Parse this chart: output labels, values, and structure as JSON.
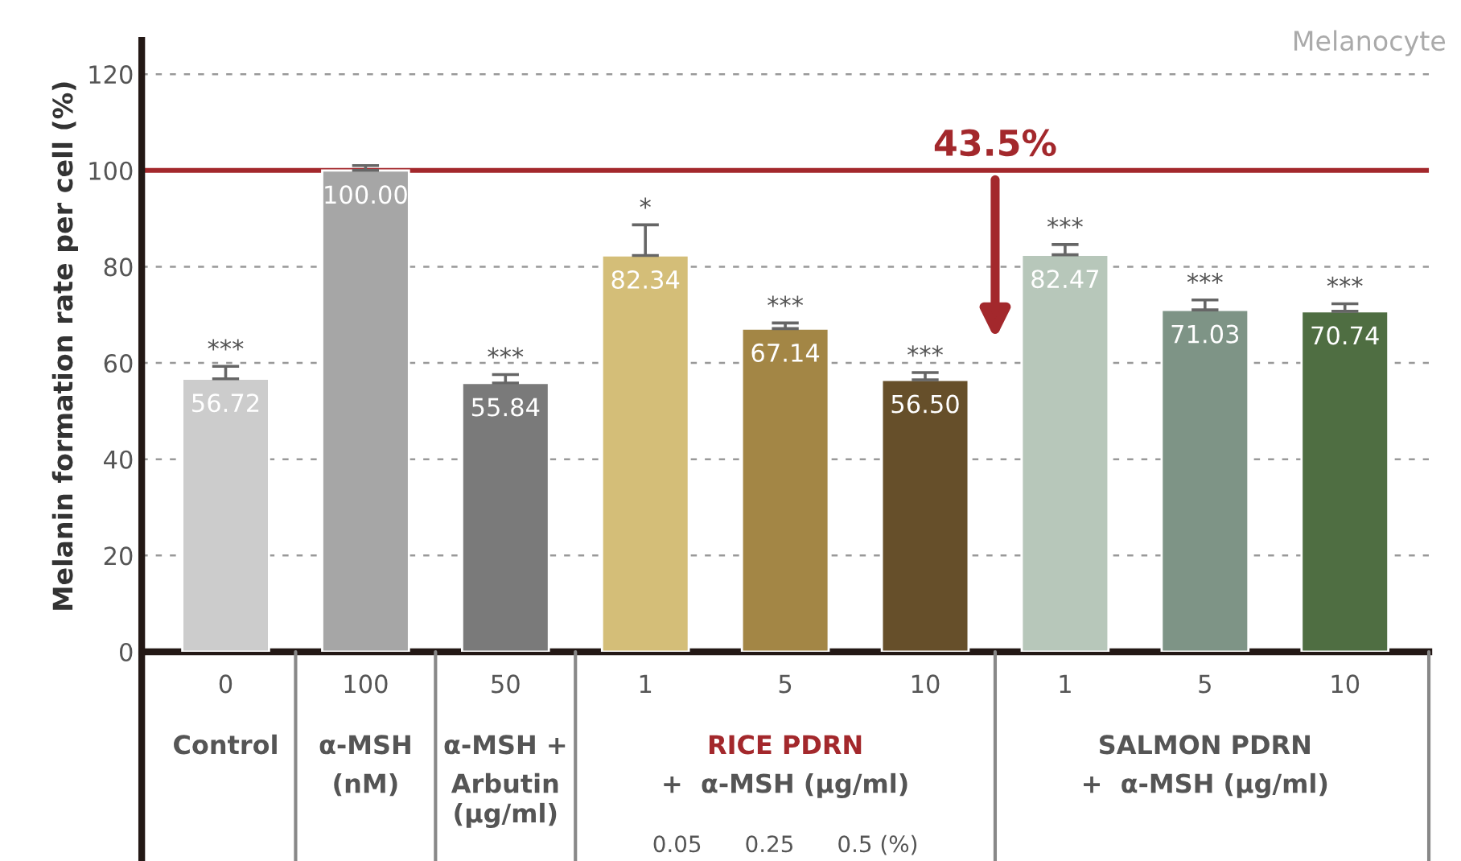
{
  "chart_data": {
    "type": "bar",
    "ylabel": "Melanin formation rate per cell (%)",
    "categories": [
      "0",
      "100",
      "50",
      "1",
      "5",
      "10",
      "1",
      "5",
      "10"
    ],
    "values": [
      56.72,
      100.0,
      55.84,
      82.34,
      67.14,
      56.5,
      82.47,
      71.03,
      70.74
    ],
    "colors": [
      "#cccccc",
      "#a6a6a6",
      "#7a7a7a",
      "#d4be78",
      "#a38645",
      "#664f2a",
      "#b7c7ba",
      "#7e9486",
      "#4f6e42"
    ],
    "errors": [
      [
        56.72,
        59.3
      ],
      [
        100.0,
        101.0
      ],
      [
        55.84,
        57.6
      ],
      [
        82.34,
        88.7
      ],
      [
        67.14,
        68.3
      ],
      [
        56.5,
        58.0
      ],
      [
        82.47,
        84.6
      ],
      [
        71.03,
        73.1
      ],
      [
        70.74,
        72.3
      ]
    ],
    "value_labels": [
      "56.72",
      "100.00",
      "55.84",
      "82.34",
      "67.14",
      "56.50",
      "82.47",
      "71.03",
      "70.74"
    ],
    "ylim": [
      0,
      127
    ],
    "yticks": [
      0,
      20,
      40,
      60,
      80,
      100,
      120
    ],
    "grid": "y",
    "ref_lines": [
      {
        "axis": "y",
        "value": 100,
        "color": "#a3282c"
      }
    ],
    "annotations": [
      "***",
      "***",
      "*",
      "***",
      "***",
      "***",
      "***",
      "***",
      "43.5%",
      "Melanocyte",
      "Control",
      "α-MSH\n(nM)",
      "α-MSH +\nArbutin\n(μg/ml)",
      "RICE PDRN\n+  α-MSH (μg/ml)",
      "SALMON PDRN\n+  α-MSH (μg/ml)",
      "0.05      0.25      0.5 (%)"
    ]
  }
}
